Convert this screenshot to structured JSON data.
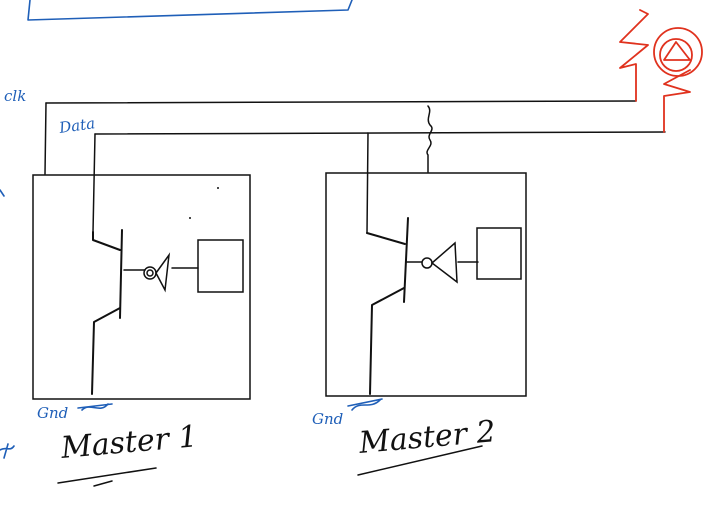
{
  "labels": {
    "clock": "clk",
    "data": "Data",
    "gnd_1": "Gnd",
    "gnd_2": "Gnd",
    "master_1": "Master 1",
    "master_2": "Master 2"
  },
  "colors": {
    "ink": "#111111",
    "annotation": "#1f5fb8",
    "pullup_highlight": "#e0321e",
    "background": "#ffffff"
  },
  "icons": {
    "pullup": "pullup-resistor-icon"
  }
}
